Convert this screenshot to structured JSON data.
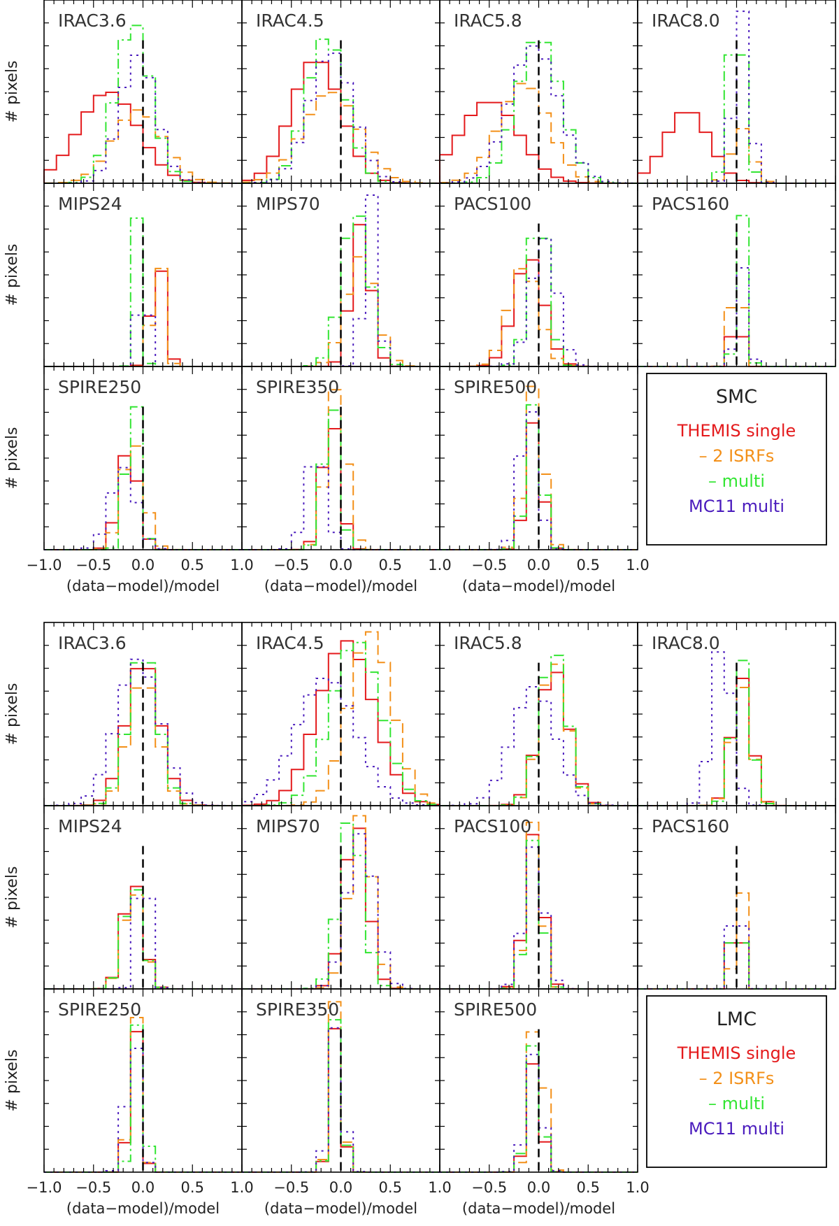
{
  "chart_data": {
    "type": "histogram-grid",
    "xlabel": "(data−model)/model",
    "ylabel": "# pixels",
    "xlim": [
      -1.0,
      1.0
    ],
    "xtick_labels": [
      "−1.0",
      "−0.5",
      "0.0",
      "0.5",
      "1.0"
    ],
    "series_names": [
      "THEMIS single",
      "– 2 ISRFs",
      "– multi",
      "MC11 multi"
    ],
    "series_colors": [
      "#e41a1c",
      "#f39019",
      "#33e533",
      "#4a1bbd"
    ],
    "figures": [
      {
        "galaxy": "SMC",
        "panels": [
          {
            "title": "IRAC3.6",
            "peaks": [
              -0.35,
              -0.05,
              -0.1,
              -0.05
            ],
            "widths": [
              0.3,
              0.25,
              0.18,
              0.18
            ],
            "heights": [
              0.5,
              0.4,
              0.88,
              0.7
            ]
          },
          {
            "title": "IRAC4.5",
            "peaks": [
              -0.25,
              -0.1,
              -0.15,
              -0.1
            ],
            "widths": [
              0.25,
              0.28,
              0.2,
              0.22
            ],
            "heights": [
              0.68,
              0.5,
              0.8,
              0.72
            ]
          },
          {
            "title": "IRAC5.8",
            "peaks": [
              -0.5,
              -0.15,
              0.0,
              -0.05
            ],
            "widths": [
              0.3,
              0.25,
              0.22,
              0.25
            ],
            "heights": [
              0.45,
              0.55,
              0.8,
              0.75
            ]
          },
          {
            "title": "IRAC8.0",
            "peaks": [
              -0.5,
              0.05,
              0.0,
              0.05
            ],
            "widths": [
              0.22,
              0.1,
              0.08,
              0.08
            ],
            "heights": [
              0.4,
              0.3,
              0.95,
              0.95
            ]
          },
          {
            "title": "MIPS24",
            "peaks": [
              0.15,
              0.15,
              -0.05,
              0.0
            ],
            "widths": [
              0.07,
              0.06,
              0.04,
              0.04
            ],
            "heights": [
              0.6,
              0.65,
              0.85,
              0.95
            ]
          },
          {
            "title": "MIPS70",
            "peaks": [
              0.2,
              0.2,
              0.15,
              0.3
            ],
            "widths": [
              0.1,
              0.15,
              0.14,
              0.07
            ],
            "heights": [
              0.78,
              0.6,
              0.85,
              0.95
            ]
          },
          {
            "title": "PACS100",
            "peaks": [
              -0.1,
              -0.15,
              0.0,
              0.05
            ],
            "widths": [
              0.15,
              0.15,
              0.1,
              0.13
            ],
            "heights": [
              0.6,
              0.55,
              0.85,
              0.7
            ]
          },
          {
            "title": "PACS160",
            "peaks": [
              0.0,
              0.0,
              0.05,
              0.05
            ],
            "widths": [
              0.04,
              0.05,
              0.05,
              0.06
            ],
            "heights": [
              0.55,
              0.7,
              0.85,
              0.55
            ]
          },
          {
            "title": "SPIRE250",
            "peaks": [
              -0.15,
              -0.1,
              -0.1,
              -0.2
            ],
            "widths": [
              0.1,
              0.11,
              0.07,
              0.13
            ],
            "heights": [
              0.55,
              0.6,
              0.9,
              0.45
            ]
          },
          {
            "title": "SPIRE350",
            "peaks": [
              -0.1,
              -0.05,
              -0.1,
              -0.25
            ],
            "widths": [
              0.09,
              0.1,
              0.08,
              0.1
            ],
            "heights": [
              0.72,
              0.88,
              0.85,
              0.55
            ]
          },
          {
            "title": "SPIRE500",
            "peaks": [
              -0.05,
              -0.05,
              -0.05,
              -0.1
            ],
            "widths": [
              0.08,
              0.09,
              0.08,
              0.09
            ],
            "heights": [
              0.7,
              0.9,
              0.8,
              0.82
            ]
          }
        ]
      },
      {
        "galaxy": "LMC",
        "panels": [
          {
            "title": "IRAC3.6",
            "peaks": [
              0.0,
              0.0,
              0.0,
              -0.05
            ],
            "widths": [
              0.17,
              0.15,
              0.15,
              0.22
            ],
            "heights": [
              0.8,
              0.7,
              0.85,
              0.8
            ]
          },
          {
            "title": "IRAC4.5",
            "peaks": [
              0.05,
              0.3,
              0.15,
              -0.15
            ],
            "widths": [
              0.28,
              0.22,
              0.25,
              0.3
            ],
            "heights": [
              0.9,
              0.95,
              0.9,
              0.7
            ]
          },
          {
            "title": "IRAC5.8",
            "peaks": [
              0.15,
              0.15,
              0.15,
              -0.05
            ],
            "widths": [
              0.15,
              0.14,
              0.14,
              0.22
            ],
            "heights": [
              0.75,
              0.8,
              0.85,
              0.65
            ]
          },
          {
            "title": "IRAC8.0",
            "peaks": [
              0.05,
              0.05,
              0.05,
              -0.15
            ],
            "widths": [
              0.1,
              0.1,
              0.09,
              0.1
            ],
            "heights": [
              0.7,
              0.65,
              0.8,
              0.9
            ]
          },
          {
            "title": "MIPS24",
            "peaks": [
              -0.1,
              -0.1,
              -0.1,
              0.0
            ],
            "widths": [
              0.1,
              0.1,
              0.1,
              0.06
            ],
            "heights": [
              0.6,
              0.55,
              0.58,
              0.85
            ]
          },
          {
            "title": "MIPS70",
            "peaks": [
              0.15,
              0.2,
              0.1,
              0.2
            ],
            "widths": [
              0.12,
              0.12,
              0.12,
              0.14
            ],
            "heights": [
              0.92,
              0.95,
              0.95,
              0.85
            ]
          },
          {
            "title": "PACS100",
            "peaks": [
              -0.05,
              -0.05,
              -0.05,
              -0.05
            ],
            "widths": [
              0.09,
              0.08,
              0.08,
              0.1
            ],
            "heights": [
              0.85,
              0.92,
              0.82,
              0.78
            ]
          },
          {
            "title": "PACS160",
            "peaks": [
              0.0,
              0.02,
              0.0,
              0.0
            ],
            "widths": [
              0.04,
              0.04,
              0.04,
              0.05
            ],
            "heights": [
              0.85,
              0.92,
              0.85,
              0.75
            ]
          },
          {
            "title": "SPIRE250",
            "peaks": [
              -0.08,
              -0.08,
              -0.05,
              -0.1
            ],
            "widths": [
              0.06,
              0.06,
              0.06,
              0.07
            ],
            "heights": [
              0.8,
              0.88,
              0.82,
              0.78
            ]
          },
          {
            "title": "SPIRE350",
            "peaks": [
              -0.05,
              -0.05,
              -0.05,
              -0.05
            ],
            "widths": [
              0.06,
              0.06,
              0.06,
              0.07
            ],
            "heights": [
              0.8,
              0.95,
              0.85,
              0.8
            ]
          },
          {
            "title": "SPIRE500",
            "peaks": [
              -0.05,
              -0.02,
              -0.05,
              -0.05
            ],
            "widths": [
              0.07,
              0.07,
              0.07,
              0.08
            ],
            "heights": [
              0.6,
              0.92,
              0.7,
              0.65
            ]
          }
        ]
      }
    ]
  }
}
